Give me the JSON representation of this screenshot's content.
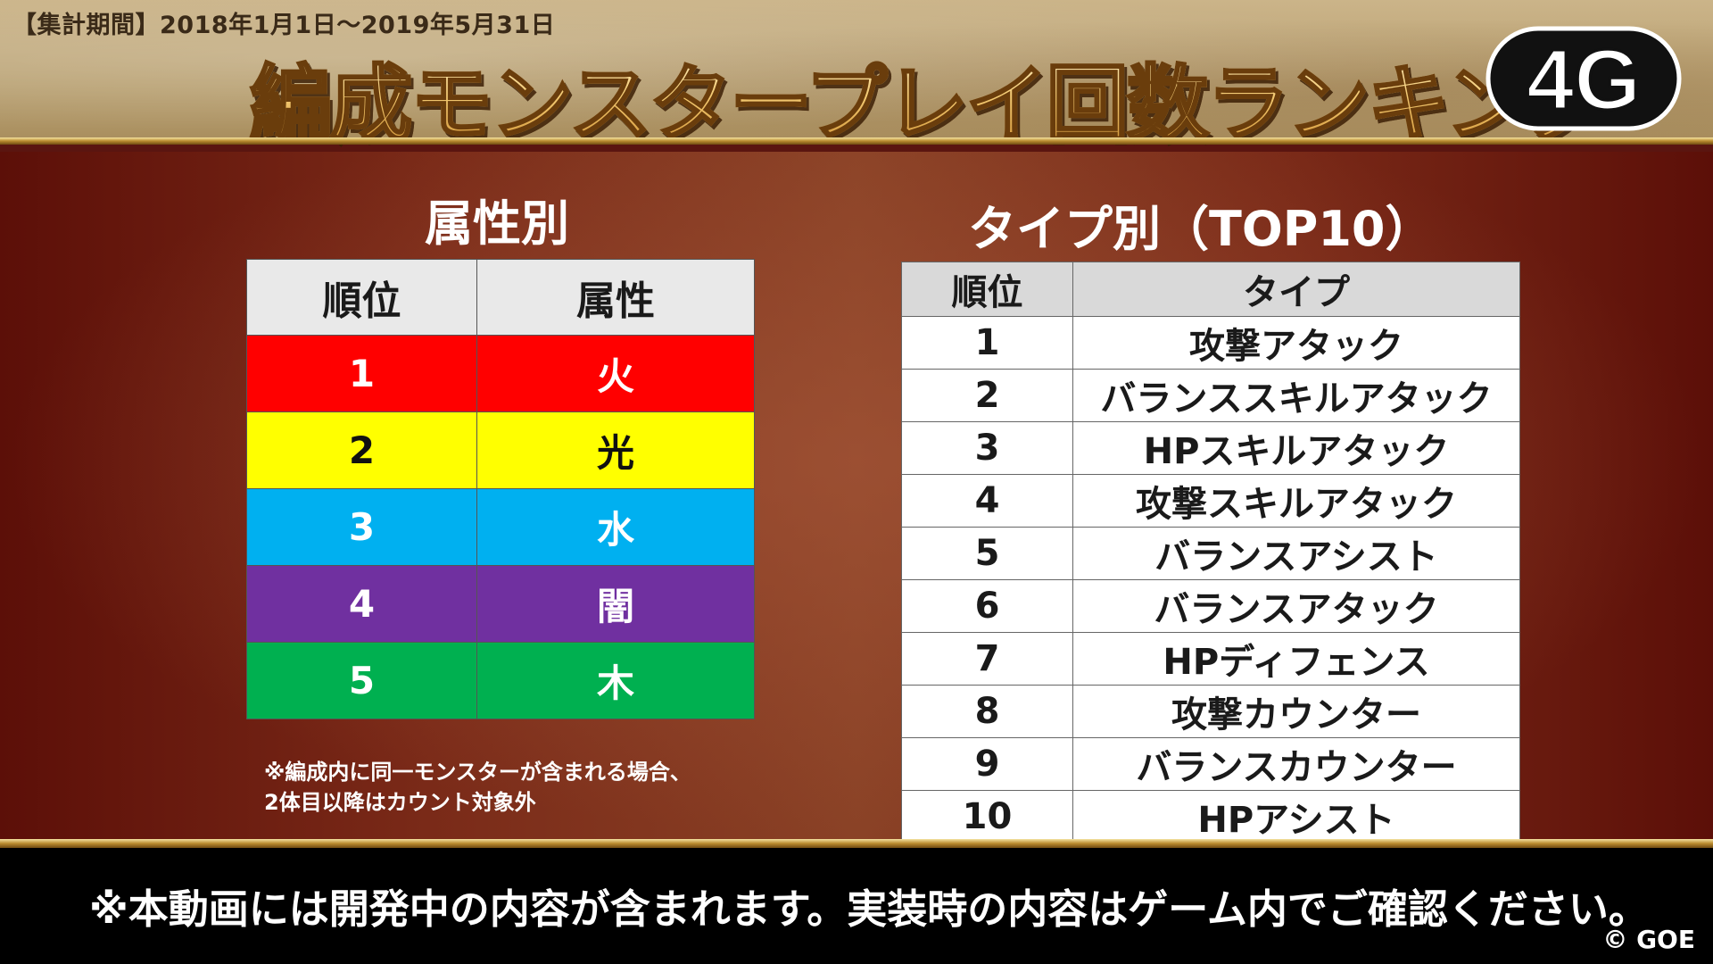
{
  "header": {
    "period": "【集計期間】2018年1月1日～2019年5月31日",
    "title": "編成モンスタープレイ回数ランキング",
    "logo_text": "4G"
  },
  "attribute_section": {
    "title": "属性別",
    "columns": [
      "順位",
      "属性"
    ],
    "rows": [
      {
        "rank": "1",
        "attribute": "火",
        "bg": "#ff0000",
        "fg": "#ffffff"
      },
      {
        "rank": "2",
        "attribute": "光",
        "bg": "#ffff00",
        "fg": "#111111"
      },
      {
        "rank": "3",
        "attribute": "水",
        "bg": "#00b0f0",
        "fg": "#ffffff"
      },
      {
        "rank": "4",
        "attribute": "闇",
        "bg": "#7030a0",
        "fg": "#ffffff"
      },
      {
        "rank": "5",
        "attribute": "木",
        "bg": "#00b050",
        "fg": "#ffffff"
      }
    ],
    "note_line1": "※編成内に同一モンスターが含まれる場合、",
    "note_line2": "2体目以降はカウント対象外"
  },
  "type_section": {
    "title": "タイプ別（TOP10）",
    "columns": [
      "順位",
      "タイプ"
    ],
    "rows": [
      {
        "rank": "1",
        "type": "攻撃アタック"
      },
      {
        "rank": "2",
        "type": "バランススキルアタック"
      },
      {
        "rank": "3",
        "type": "HPスキルアタック"
      },
      {
        "rank": "4",
        "type": "攻撃スキルアタック"
      },
      {
        "rank": "5",
        "type": "バランスアシスト"
      },
      {
        "rank": "6",
        "type": "バランスアタック"
      },
      {
        "rank": "7",
        "type": "HPディフェンス"
      },
      {
        "rank": "8",
        "type": "攻撃カウンター"
      },
      {
        "rank": "9",
        "type": "バランスカウンター"
      },
      {
        "rank": "10",
        "type": "HPアシスト"
      }
    ]
  },
  "footer": {
    "notice": "※本動画には開発中の内容が含まれます。実装時の内容はゲーム内でご確認ください。",
    "copyright": "© GOE"
  }
}
